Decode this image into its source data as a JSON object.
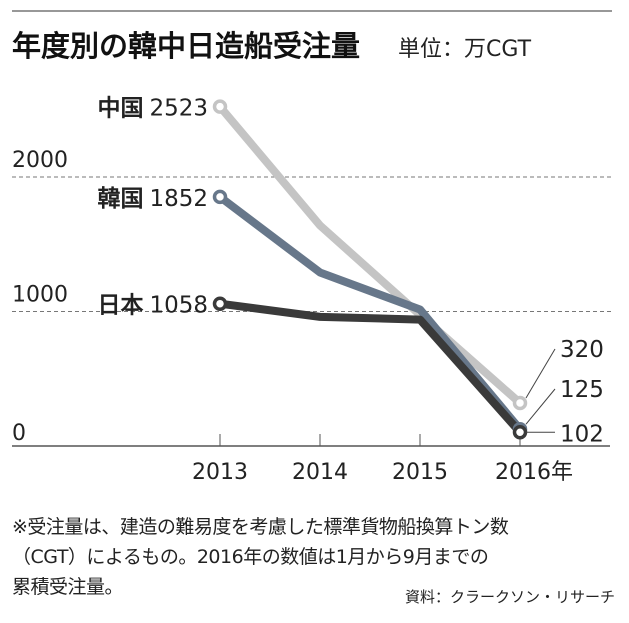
{
  "chart_data": {
    "type": "line",
    "title": "年度別の韓中日造船受注量",
    "unit": "単位：万CGT",
    "x": [
      "2013",
      "2014",
      "2015",
      "2016年"
    ],
    "ylim": [
      0,
      2700
    ],
    "yticks": [
      "0",
      "1000",
      "2000"
    ],
    "ytick_values": [
      0,
      1000,
      2000
    ],
    "grid": "dashed at 1000 and 2000",
    "series": [
      {
        "name": "中国",
        "start_label": "2523",
        "end_label": "320",
        "values": [
          2523,
          1640,
          975,
          320
        ],
        "color": "#c4c4c4"
      },
      {
        "name": "韓国",
        "start_label": "1852",
        "end_label": "125",
        "values": [
          1852,
          1290,
          1015,
          125
        ],
        "color": "#67778a"
      },
      {
        "name": "日本",
        "start_label": "1058",
        "end_label": "102",
        "values": [
          1058,
          960,
          940,
          102
        ],
        "color": "#3a3a3a"
      }
    ]
  },
  "notes": [
    "※受注量は、建造の難易度を考慮した標準貨物船換算トン数",
    "（CGT）によるもの。2016年の数値は1月から9月までの",
    "累積受注量。"
  ],
  "source": "資料：クラークソン・リサーチ"
}
